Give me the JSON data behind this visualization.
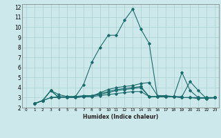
{
  "background_color": "#cce8ea",
  "grid_color": "#aad0d3",
  "line_color": "#1a6b6b",
  "xlabel": "Humidex (Indice chaleur)",
  "xlim": [
    -0.5,
    23.5
  ],
  "ylim": [
    2,
    12.3
  ],
  "yticks": [
    2,
    3,
    4,
    5,
    6,
    7,
    8,
    9,
    10,
    11,
    12
  ],
  "xticks": [
    0,
    1,
    2,
    3,
    4,
    5,
    6,
    7,
    8,
    9,
    10,
    11,
    12,
    13,
    14,
    15,
    16,
    17,
    18,
    19,
    20,
    21,
    22,
    23
  ],
  "lines": [
    {
      "x": [
        1,
        2,
        3,
        4,
        5,
        6,
        7,
        8,
        9,
        10,
        11,
        12,
        13,
        14,
        15,
        16,
        17,
        18,
        19,
        20,
        21,
        22,
        23
      ],
      "y": [
        2.4,
        2.7,
        3.7,
        3.0,
        3.0,
        3.1,
        4.3,
        6.5,
        8.0,
        9.2,
        9.2,
        10.7,
        11.8,
        9.8,
        8.4,
        3.1,
        3.1,
        3.1,
        5.5,
        3.7,
        3.0,
        3.0,
        3.0
      ]
    },
    {
      "x": [
        1,
        2,
        3,
        4,
        5,
        6,
        7,
        8,
        9,
        10,
        11,
        12,
        13,
        14,
        15,
        16,
        17,
        18,
        19,
        20,
        21,
        22,
        23
      ],
      "y": [
        2.4,
        2.7,
        3.0,
        3.0,
        3.0,
        3.0,
        3.1,
        3.1,
        3.5,
        3.8,
        4.0,
        4.1,
        4.2,
        4.4,
        4.5,
        3.2,
        3.2,
        3.1,
        3.0,
        3.0,
        2.9,
        3.0,
        3.0
      ]
    },
    {
      "x": [
        1,
        2,
        3,
        4,
        5,
        6,
        7,
        8,
        9,
        10,
        11,
        12,
        13,
        14,
        15,
        16,
        17,
        18,
        19,
        20,
        21,
        22,
        23
      ],
      "y": [
        2.4,
        2.7,
        3.7,
        3.3,
        3.1,
        3.1,
        3.2,
        3.2,
        3.3,
        3.5,
        3.7,
        3.8,
        3.9,
        4.0,
        3.1,
        3.1,
        3.1,
        3.1,
        3.1,
        4.6,
        3.7,
        2.9,
        3.0
      ]
    },
    {
      "x": [
        1,
        2,
        3,
        4,
        5,
        6,
        7,
        8,
        9,
        10,
        11,
        12,
        13,
        14,
        15,
        16,
        17,
        18,
        19,
        20,
        21,
        22,
        23
      ],
      "y": [
        2.4,
        2.7,
        3.0,
        3.1,
        3.1,
        3.1,
        3.1,
        3.1,
        3.2,
        3.3,
        3.4,
        3.5,
        3.6,
        3.6,
        3.1,
        3.1,
        3.1,
        3.1,
        3.0,
        3.0,
        3.0,
        2.9,
        3.0
      ]
    },
    {
      "x": [
        1,
        2,
        3,
        4,
        5,
        6,
        7,
        8,
        9,
        10,
        11,
        12,
        13,
        14,
        15,
        16,
        17,
        18,
        19,
        20,
        21,
        22,
        23
      ],
      "y": [
        2.4,
        2.7,
        3.7,
        3.0,
        3.0,
        3.0,
        3.1,
        3.2,
        3.4,
        3.6,
        3.8,
        3.9,
        4.0,
        4.1,
        3.1,
        3.1,
        3.1,
        3.1,
        3.0,
        3.0,
        3.0,
        2.9,
        3.0
      ]
    }
  ]
}
